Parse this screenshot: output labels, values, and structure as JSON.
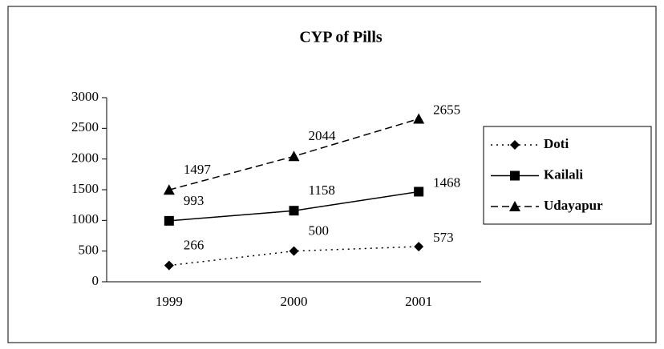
{
  "chart_data": {
    "type": "line",
    "title": "CYP of Pills",
    "categories": [
      "1999",
      "2000",
      "2001"
    ],
    "series": [
      {
        "name": "Doti",
        "color": "#000000",
        "line_style": "dotted",
        "marker": "diamond",
        "values": [
          266,
          500,
          573
        ]
      },
      {
        "name": "Kailali",
        "color": "#000000",
        "line_style": "solid",
        "marker": "square",
        "values": [
          993,
          1158,
          1468
        ]
      },
      {
        "name": "Udayapur",
        "color": "#000000",
        "line_style": "dashed",
        "marker": "triangle",
        "values": [
          1497,
          2044,
          2655
        ]
      }
    ],
    "ylim": [
      0,
      3000
    ],
    "yticks": [
      0,
      500,
      1000,
      1500,
      2000,
      2500,
      3000
    ],
    "grid": false,
    "legend": "right",
    "data_labels": true
  }
}
